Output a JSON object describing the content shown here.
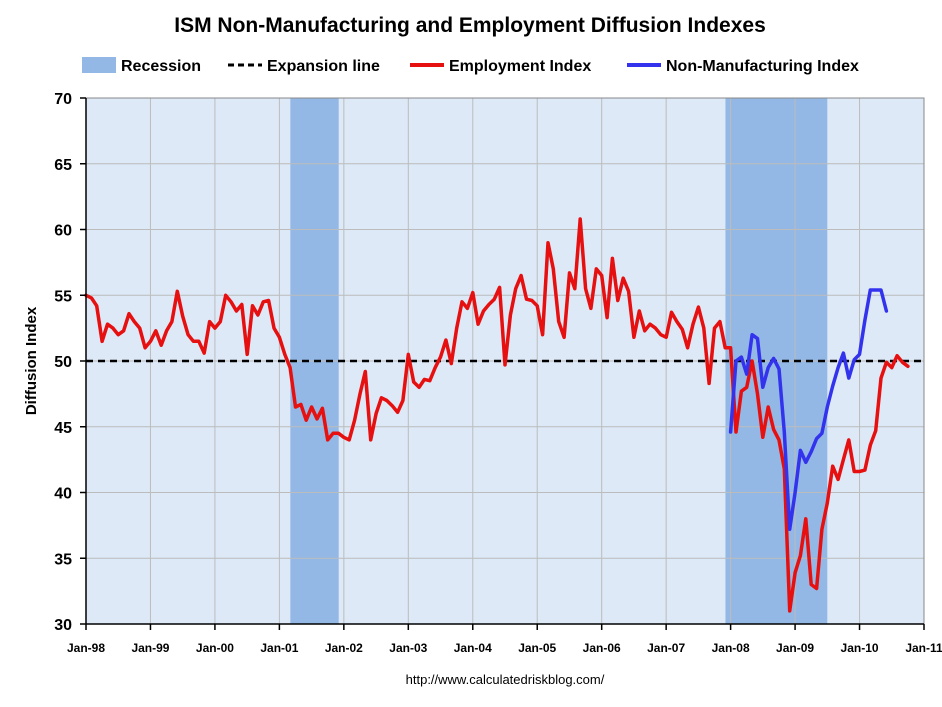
{
  "chart_data": {
    "type": "line",
    "title": "ISM Non-Manufacturing and Employment Diffusion Indexes",
    "ylabel": "Diffusion Index",
    "xlabel": "",
    "ylim": [
      30,
      70
    ],
    "yticks": [
      30,
      35,
      40,
      45,
      50,
      55,
      60,
      65,
      70
    ],
    "xlim_months": [
      1998.0,
      2011.0
    ],
    "xtick_labels": [
      "Jan-98",
      "Jan-99",
      "Jan-00",
      "Jan-01",
      "Jan-02",
      "Jan-03",
      "Jan-04",
      "Jan-05",
      "Jan-06",
      "Jan-07",
      "Jan-08",
      "Jan-09",
      "Jan-10",
      "Jan-11"
    ],
    "xtick_values": [
      1998,
      1999,
      2000,
      2001,
      2002,
      2003,
      2004,
      2005,
      2006,
      2007,
      2008,
      2009,
      2010,
      2011
    ],
    "grid": true,
    "legend": {
      "placement": "top",
      "items": [
        {
          "key": "recession",
          "label": "Recession"
        },
        {
          "key": "expansion",
          "label": "Expansion line"
        },
        {
          "key": "employment",
          "label": "Employment Index"
        },
        {
          "key": "nonmfg",
          "label": "Non-Manufacturing Index"
        }
      ]
    },
    "expansion_line": 50,
    "recessions": [
      {
        "start": 2001.17,
        "end": 2001.92
      },
      {
        "start": 2007.92,
        "end": 2009.5
      }
    ],
    "series": [
      {
        "name": "Employment Index",
        "key": "employment",
        "color": "#e61010",
        "start": 1998.0,
        "step": 0.0833333,
        "values": [
          55.0,
          54.8,
          54.2,
          51.5,
          52.8,
          52.5,
          52.0,
          52.3,
          53.6,
          53.0,
          52.5,
          51.0,
          51.5,
          52.3,
          51.2,
          52.3,
          53.0,
          55.3,
          53.4,
          52.0,
          51.5,
          51.5,
          50.6,
          53.0,
          52.5,
          53.0,
          55.0,
          54.5,
          53.8,
          54.3,
          50.5,
          54.2,
          53.5,
          54.5,
          54.6,
          52.5,
          51.8,
          50.5,
          49.5,
          46.5,
          46.7,
          45.5,
          46.5,
          45.6,
          46.4,
          44.0,
          44.5,
          44.5,
          44.2,
          44.0,
          45.5,
          47.5,
          49.2,
          44.0,
          46.0,
          47.2,
          47.0,
          46.6,
          46.1,
          47.0,
          50.5,
          48.4,
          48.0,
          48.6,
          48.5,
          49.5,
          50.3,
          51.6,
          49.8,
          52.5,
          54.5,
          54.0,
          55.2,
          52.8,
          53.8,
          54.3,
          54.7,
          55.6,
          49.7,
          53.5,
          55.5,
          56.5,
          54.7,
          54.6,
          54.2,
          52.0,
          59.0,
          57.0,
          53.0,
          51.8,
          56.7,
          55.5,
          60.8,
          55.5,
          54.0,
          57.0,
          56.5,
          53.3,
          57.8,
          54.6,
          56.3,
          55.3,
          51.8,
          53.8,
          52.3,
          52.8,
          52.5,
          52.0,
          51.8,
          53.7,
          53.0,
          52.4,
          51.0,
          52.8,
          54.1,
          52.5,
          48.3,
          52.5,
          53.0,
          51.0,
          51.0,
          44.6,
          47.7,
          48.0,
          50.0,
          47.5,
          44.2,
          46.5,
          44.8,
          44.0,
          41.8,
          31.0,
          33.9,
          35.2,
          38.0,
          33.0,
          32.7,
          37.2,
          39.2,
          42.0,
          41.0,
          42.5,
          44.0,
          41.6,
          41.6,
          41.7,
          43.6,
          44.7,
          48.7,
          49.9,
          49.5,
          50.4,
          49.9,
          49.6
        ]
      },
      {
        "name": "Non-Manufacturing Index",
        "key": "nonmfg",
        "color": "#3333ee",
        "start": 2008.0,
        "step": 0.0833333,
        "values": [
          44.6,
          50.0,
          50.3,
          49.0,
          52.0,
          51.7,
          48.0,
          49.5,
          50.2,
          49.4,
          44.6,
          37.2,
          40.0,
          43.2,
          42.3,
          43.1,
          44.1,
          44.5,
          46.5,
          48.1,
          49.5,
          50.6,
          48.7,
          50.1,
          50.5,
          53.1,
          55.4,
          55.4,
          55.4,
          53.8
        ]
      }
    ],
    "source_text": "http://www.calculatedriskblog.com/"
  },
  "colors": {
    "plot_background": "#dde9f7",
    "grid": "#bcbcbc",
    "recession_band": "#93b8e5",
    "expansion_line": "#000000",
    "axis": "#000000"
  }
}
